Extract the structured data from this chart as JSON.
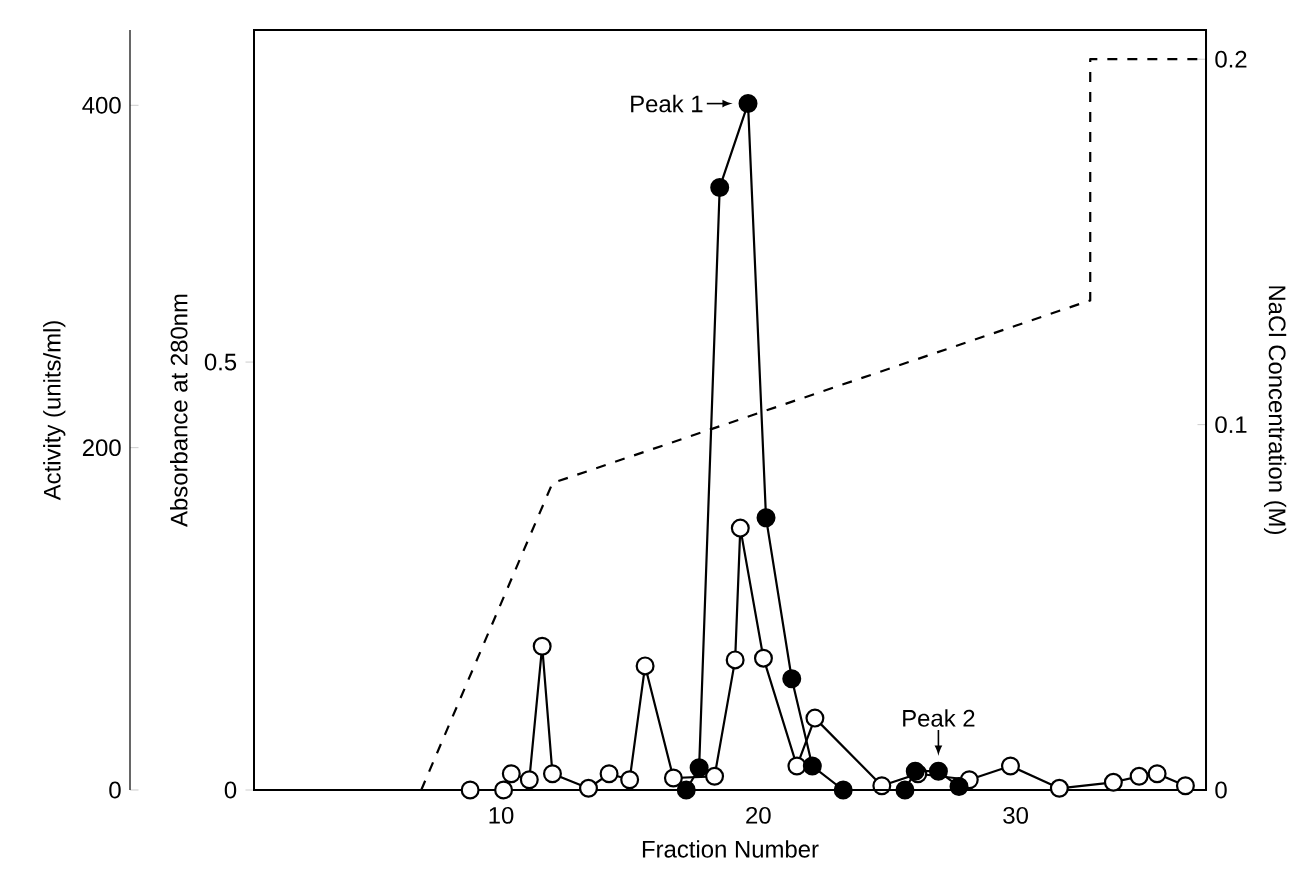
{
  "chart_data": {
    "type": "line",
    "xlabel": "Fraction Number",
    "ylabel": "Activity (units/ml)",
    "y3label": "Absorbance at 280nm",
    "y2label": "NaCl Concentration (M)",
    "xlim": [
      0.4,
      37.4
    ],
    "xticks": [
      10,
      20,
      30
    ],
    "ylim": [
      0,
      444
    ],
    "yticks": [
      0,
      200,
      400
    ],
    "y3lim": [
      0,
      0.888
    ],
    "y3ticks": [
      0,
      0.5
    ],
    "y2lim": [
      0,
      0.208
    ],
    "y2ticks": [
      0,
      0.1,
      0.2
    ],
    "series": [
      {
        "axis": "y2",
        "color": "#000000",
        "line_style": "dashed",
        "marker": "none",
        "x": [
          6.9,
          12.0,
          32.9,
          32.9,
          37.4
        ],
        "values": [
          0,
          0.084,
          0.134,
          0.2,
          0.2
        ]
      },
      {
        "axis": "y3",
        "color": "#000000",
        "line_style": "solid",
        "marker": "circle-open",
        "x": [
          8.8,
          10.1,
          10.4,
          11.1,
          11.6,
          12.0,
          13.4,
          14.2,
          15.0,
          15.6,
          16.7,
          18.3,
          19.1,
          19.3,
          20.2,
          21.5,
          22.2,
          24.8,
          26.2,
          28.2,
          29.8,
          31.7,
          33.8,
          34.8,
          35.5,
          36.6
        ],
        "values": [
          0,
          0,
          0.019,
          0.012,
          0.168,
          0.019,
          0.002,
          0.019,
          0.012,
          0.145,
          0.014,
          0.016,
          0.152,
          0.306,
          0.154,
          0.028,
          0.084,
          0.005,
          0.019,
          0.012,
          0.028,
          0.002,
          0.009,
          0.016,
          0.019,
          0.005
        ]
      },
      {
        "axis": "y",
        "color": "#000000",
        "line_style": "solid",
        "marker": "circle",
        "x": [
          17.2,
          17.7,
          18.5,
          19.6,
          20.3,
          21.3,
          22.1,
          23.3,
          25.7,
          26.1,
          27.0,
          27.8
        ],
        "values": [
          0,
          13,
          352,
          401,
          159,
          65,
          14,
          0,
          0,
          11,
          11,
          2
        ]
      }
    ],
    "annotations": [
      {
        "text": "Peak 1",
        "x": 19.6,
        "y": 401
      },
      {
        "text": "Peak 2",
        "x": 27.0,
        "y": 11
      }
    ]
  }
}
